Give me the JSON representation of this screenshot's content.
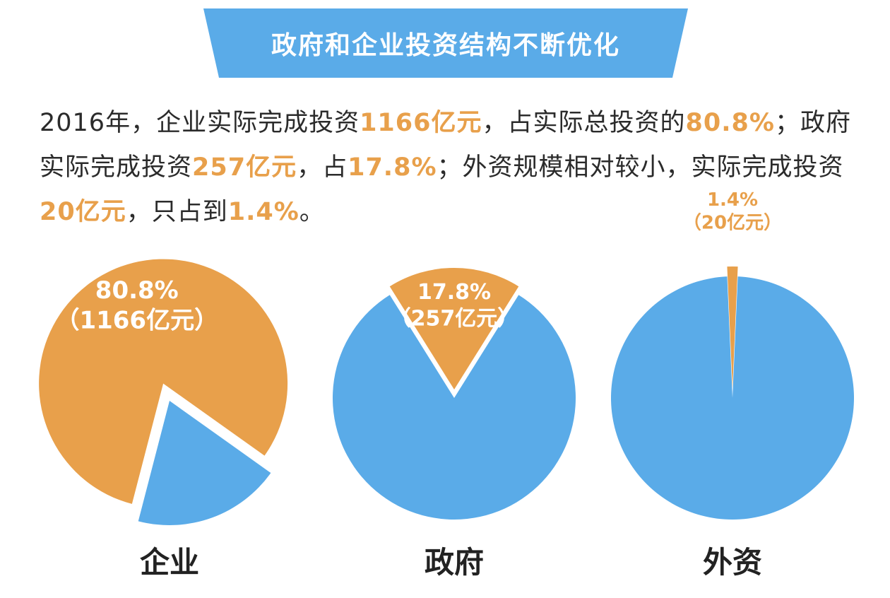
{
  "title": "政府和企业投资结构不断优化",
  "intro": [
    {
      "t": "2016年，企业实际完成投资",
      "h": false
    },
    {
      "t": "1166亿元",
      "h": true
    },
    {
      "t": "，占实际总投资的",
      "h": false
    },
    {
      "t": "80.8%",
      "h": true
    },
    {
      "t": "；政府实际完成投资",
      "h": false
    },
    {
      "t": "257亿元",
      "h": true
    },
    {
      "t": "，占",
      "h": false
    },
    {
      "t": "17.8%",
      "h": true
    },
    {
      "t": "；外资规模相对较小，实际完成投资",
      "h": false
    },
    {
      "t": "20亿元",
      "h": true
    },
    {
      "t": "，只占到",
      "h": false
    },
    {
      "t": "1.4%",
      "h": true
    },
    {
      "t": "。",
      "h": false
    }
  ],
  "colors": {
    "blue": "#5aabe8",
    "orange": "#e8a04b",
    "banner": "#5aabe8"
  },
  "chart_data": [
    {
      "type": "pie",
      "category": "企业",
      "slices": [
        {
          "value": 80.8,
          "amount": "1166亿元",
          "highlight": true,
          "color": "#e8a04b",
          "label": "80.8%",
          "sublabel": "（1166亿元）"
        },
        {
          "value": 19.2,
          "highlight": false,
          "color": "#5aabe8"
        }
      ]
    },
    {
      "type": "pie",
      "category": "政府",
      "slices": [
        {
          "value": 17.8,
          "amount": "257亿元",
          "highlight": true,
          "color": "#e8a04b",
          "label": "17.8%",
          "sublabel": "（257亿元）"
        },
        {
          "value": 82.2,
          "highlight": false,
          "color": "#5aabe8"
        }
      ]
    },
    {
      "type": "pie",
      "category": "外资",
      "slices": [
        {
          "value": 1.4,
          "amount": "20亿元",
          "highlight": true,
          "color": "#e8a04b",
          "label": "1.4%",
          "sublabel": "（20亿元）"
        },
        {
          "value": 98.6,
          "highlight": false,
          "color": "#5aabe8"
        }
      ]
    }
  ]
}
